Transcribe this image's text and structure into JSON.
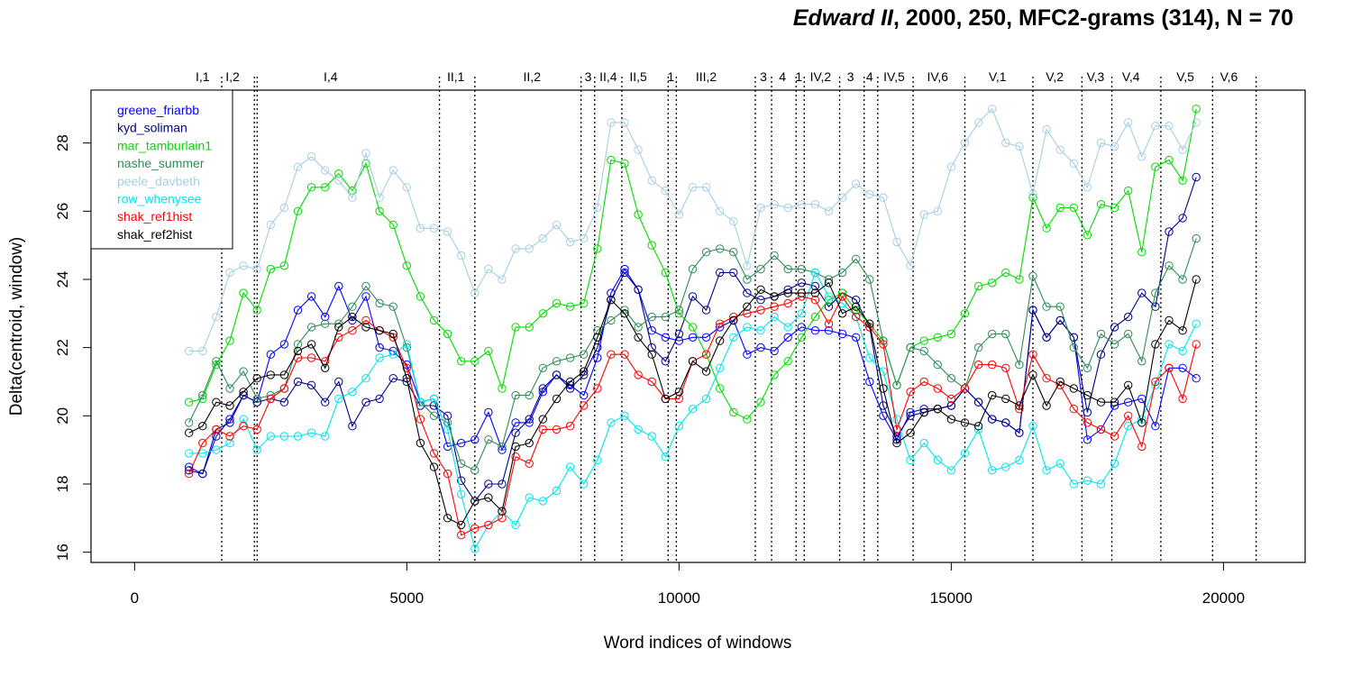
{
  "chart_data": {
    "type": "line",
    "title": {
      "italic_part": "Edward II",
      "rest": ", 2000, 250, MFC2-grams (314), N = 70"
    },
    "xlabel": "Word indices of windows",
    "ylabel": "Delta(centroid, window)",
    "xlim": [
      -800,
      21500
    ],
    "ylim": [
      15.7,
      29.55
    ],
    "xticks": [
      0,
      5000,
      10000,
      15000,
      20000
    ],
    "yticks": [
      16,
      18,
      20,
      22,
      24,
      26,
      28
    ],
    "grid": false,
    "legend_position": "top-left",
    "x": [
      1000,
      1250,
      1500,
      1750,
      2000,
      2250,
      2500,
      2750,
      3000,
      3250,
      3500,
      3750,
      4000,
      4250,
      4500,
      4750,
      5000,
      5250,
      5500,
      5750,
      6000,
      6250,
      6500,
      6750,
      7000,
      7250,
      7500,
      7750,
      8000,
      8250,
      8500,
      8750,
      9000,
      9250,
      9500,
      9750,
      10000,
      10250,
      10500,
      10750,
      11000,
      11250,
      11500,
      11750,
      12000,
      12250,
      12500,
      12750,
      13000,
      13250,
      13500,
      13750,
      14000,
      14250,
      14500,
      14750,
      15000,
      15250,
      15500,
      15750,
      16000,
      16250,
      16500,
      16750,
      17000,
      17250,
      17500,
      17750,
      18000,
      18250,
      18500,
      18750,
      19000,
      19250,
      19500
    ],
    "series": [
      {
        "name": "greene_friarbb",
        "color": "#0000ff",
        "values": [
          18.5,
          18.3,
          19.4,
          19.9,
          20.6,
          20.4,
          21.8,
          22.1,
          23.1,
          23.5,
          22.9,
          23.8,
          22.8,
          23.5,
          22.0,
          21.9,
          21.5,
          20.4,
          20.5,
          19.1,
          19.2,
          19.3,
          20.1,
          19.0,
          19.8,
          19.8,
          20.7,
          21.2,
          20.9,
          20.6,
          21.7,
          23.6,
          24.3,
          23.7,
          22.5,
          22.3,
          22.2,
          22.3,
          22.3,
          22.6,
          22.8,
          21.8,
          22.0,
          21.9,
          22.3,
          22.6,
          22.5,
          22.5,
          22.4,
          22.3,
          21.0,
          20.0,
          19.3,
          20.1,
          20.2,
          20.2,
          20.3,
          20.8,
          20.4,
          19.9,
          19.8,
          19.5,
          23.1,
          22.3,
          22.8,
          22.3,
          19.3,
          19.6,
          20.3,
          20.4,
          20.5,
          19.7,
          21.4,
          21.4,
          21.1
        ]
      },
      {
        "name": "kyd_soliman",
        "color": "#00008b",
        "values": [
          18.4,
          18.3,
          19.6,
          19.8,
          20.6,
          20.4,
          20.5,
          20.4,
          21.0,
          20.9,
          20.4,
          21.0,
          19.7,
          20.4,
          20.5,
          21.1,
          21.0,
          20.3,
          20.3,
          20.0,
          18.1,
          17.5,
          18.0,
          18.0,
          19.5,
          19.9,
          20.8,
          21.2,
          20.8,
          21.2,
          22.0,
          23.4,
          24.2,
          23.7,
          22.0,
          21.6,
          22.4,
          23.5,
          23.1,
          24.2,
          24.2,
          23.6,
          23.4,
          23.5,
          23.7,
          23.9,
          23.8,
          23.2,
          23.6,
          23.4,
          22.6,
          20.3,
          19.4,
          20.0,
          20.1,
          20.2,
          20.3,
          20.8,
          20.4,
          19.9,
          19.8,
          19.5,
          23.1,
          22.3,
          22.8,
          22.3,
          20.1,
          21.8,
          22.6,
          22.9,
          23.6,
          23.2,
          25.4,
          25.8,
          27.0
        ]
      },
      {
        "name": "mar_tamburlain1",
        "color": "#00dd00",
        "values": [
          20.4,
          20.5,
          21.5,
          22.2,
          23.6,
          23.1,
          24.3,
          24.4,
          26.0,
          26.7,
          26.7,
          27.1,
          26.6,
          27.4,
          26.0,
          25.6,
          24.4,
          23.5,
          22.8,
          22.4,
          21.6,
          21.6,
          21.9,
          20.8,
          22.6,
          22.6,
          23.0,
          23.3,
          23.2,
          23.3,
          24.9,
          27.5,
          27.4,
          25.9,
          25.0,
          24.2,
          23.0,
          22.6,
          21.8,
          20.8,
          20.1,
          19.9,
          20.4,
          21.2,
          21.6,
          22.3,
          22.9,
          23.4,
          23.6,
          23.1,
          22.7,
          22.2,
          20.9,
          22.0,
          22.2,
          22.3,
          22.4,
          23.0,
          23.8,
          23.9,
          24.2,
          24.0,
          26.4,
          25.5,
          26.1,
          26.1,
          25.3,
          26.2,
          26.1,
          26.6,
          24.8,
          27.3,
          27.5,
          26.9,
          29.0
        ]
      },
      {
        "name": "nashe_summer",
        "color": "#2e8b57",
        "values": [
          19.8,
          20.6,
          21.6,
          20.8,
          21.3,
          20.5,
          20.6,
          20.8,
          22.1,
          22.6,
          22.7,
          22.7,
          23.2,
          23.8,
          23.3,
          23.2,
          22.0,
          20.4,
          20.0,
          19.8,
          18.6,
          18.4,
          19.3,
          19.1,
          20.6,
          20.6,
          21.4,
          21.6,
          21.7,
          21.8,
          22.5,
          22.8,
          23.1,
          22.6,
          22.9,
          22.9,
          23.1,
          24.3,
          24.8,
          24.9,
          24.8,
          24.0,
          24.3,
          24.7,
          24.3,
          24.3,
          24.2,
          24.0,
          24.2,
          24.6,
          24.0,
          22.2,
          20.9,
          22.0,
          21.9,
          21.5,
          21.1,
          20.8,
          22.0,
          22.4,
          22.4,
          21.5,
          24.1,
          23.2,
          23.2,
          22.0,
          21.4,
          22.4,
          22.1,
          22.4,
          21.6,
          23.6,
          24.4,
          24.0,
          25.2
        ]
      },
      {
        "name": "peele_davbeth",
        "color": "#a6cee3",
        "values": [
          21.9,
          21.9,
          22.9,
          24.2,
          24.4,
          24.3,
          25.6,
          26.1,
          27.3,
          27.6,
          27.2,
          26.9,
          26.4,
          27.7,
          26.4,
          27.2,
          26.7,
          25.5,
          25.5,
          25.4,
          24.7,
          23.6,
          24.3,
          24.0,
          24.9,
          24.9,
          25.2,
          25.6,
          25.1,
          25.2,
          26.1,
          28.6,
          28.6,
          27.8,
          26.9,
          26.6,
          25.9,
          26.7,
          26.7,
          26.0,
          25.7,
          24.4,
          26.1,
          26.2,
          26.1,
          26.2,
          26.2,
          26.0,
          26.4,
          26.8,
          26.5,
          26.4,
          25.1,
          24.4,
          25.9,
          26.0,
          27.3,
          28.0,
          28.6,
          29.0,
          28.0,
          27.9,
          26.5,
          28.4,
          27.8,
          27.4,
          26.7,
          28.0,
          27.9,
          28.6,
          27.6,
          28.5,
          28.5,
          27.8,
          28.6
        ]
      },
      {
        "name": "row_whenysee",
        "color": "#00e5ee",
        "values": [
          18.9,
          18.9,
          19.0,
          19.2,
          19.9,
          19.0,
          19.4,
          19.4,
          19.4,
          19.5,
          19.4,
          20.5,
          20.7,
          21.1,
          21.7,
          21.8,
          22.1,
          20.4,
          20.5,
          19.6,
          17.7,
          16.1,
          16.8,
          17.2,
          16.8,
          17.6,
          17.5,
          17.8,
          18.5,
          18.0,
          18.7,
          19.8,
          20.0,
          19.6,
          19.4,
          18.8,
          19.7,
          20.2,
          20.5,
          21.4,
          22.3,
          22.6,
          22.5,
          22.9,
          22.6,
          23.0,
          24.2,
          23.5,
          23.3,
          22.9,
          21.7,
          21.3,
          19.9,
          18.7,
          19.2,
          18.7,
          18.4,
          18.9,
          19.6,
          18.4,
          18.5,
          18.7,
          19.7,
          18.4,
          18.6,
          18.0,
          18.1,
          18.0,
          18.6,
          19.7,
          19.9,
          20.9,
          22.1,
          21.9,
          22.7
        ]
      },
      {
        "name": "shak_ref1hist",
        "color": "#ff0000",
        "values": [
          18.3,
          19.2,
          19.6,
          19.4,
          19.7,
          19.6,
          20.5,
          20.8,
          21.7,
          21.7,
          21.6,
          22.3,
          22.5,
          22.8,
          22.5,
          22.3,
          21.4,
          19.9,
          18.9,
          18.3,
          16.5,
          16.7,
          16.8,
          17.0,
          18.8,
          18.6,
          19.6,
          19.6,
          19.7,
          20.3,
          20.8,
          21.8,
          21.8,
          21.2,
          21.0,
          20.5,
          20.5,
          21.6,
          21.8,
          22.7,
          22.9,
          23.0,
          23.1,
          23.2,
          23.3,
          23.5,
          23.4,
          22.7,
          23.5,
          22.9,
          22.6,
          22.1,
          19.6,
          20.7,
          21.0,
          20.8,
          20.5,
          20.8,
          21.5,
          21.5,
          21.4,
          20.2,
          21.8,
          21.1,
          20.9,
          20.2,
          19.8,
          19.6,
          19.4,
          20.0,
          19.1,
          21.0,
          21.4,
          20.5,
          22.1
        ]
      },
      {
        "name": "shak_ref2hist",
        "color": "#000000",
        "values": [
          19.5,
          19.7,
          20.4,
          20.3,
          20.7,
          21.1,
          21.2,
          21.2,
          21.9,
          22.1,
          21.4,
          22.6,
          22.9,
          22.6,
          22.5,
          22.4,
          21.1,
          19.2,
          18.5,
          17.0,
          16.8,
          17.5,
          17.6,
          17.2,
          19.1,
          19.2,
          19.9,
          20.5,
          21.0,
          21.3,
          22.3,
          23.4,
          23.0,
          22.3,
          21.8,
          20.5,
          20.7,
          21.6,
          21.3,
          22.2,
          22.8,
          23.2,
          23.7,
          23.5,
          23.6,
          23.6,
          23.6,
          23.9,
          23.0,
          23.2,
          22.7,
          20.8,
          19.2,
          19.5,
          20.1,
          20.2,
          19.9,
          19.8,
          19.7,
          20.6,
          20.5,
          20.3,
          21.2,
          20.3,
          21.0,
          20.8,
          20.6,
          20.4,
          20.4,
          20.9,
          19.8,
          22.1,
          22.8,
          22.5,
          24.0
        ]
      }
    ],
    "scene_boundaries": [
      1600,
      2200,
      2250,
      5600,
      6250,
      8200,
      8450,
      8950,
      9800,
      9950,
      11400,
      11700,
      12150,
      12300,
      12950,
      13400,
      13650,
      14300,
      15250,
      16500,
      17400,
      17950,
      18850,
      19800,
      20600
    ],
    "scene_labels": [
      {
        "label": "I,1",
        "x": 1250
      },
      {
        "label": "I,2",
        "x": 1800
      },
      {
        "label": "I,4",
        "x": 3600
      },
      {
        "label": "II,1",
        "x": 5900
      },
      {
        "label": "II,2",
        "x": 7300
      },
      {
        "label": "3",
        "x": 8330
      },
      {
        "label": "II,4",
        "x": 8700
      },
      {
        "label": "II,5",
        "x": 9250
      },
      {
        "label": "1",
        "x": 9850
      },
      {
        "label": "III,2",
        "x": 10500
      },
      {
        "label": "3",
        "x": 11550
      },
      {
        "label": "4",
        "x": 11900
      },
      {
        "label": "1",
        "x": 12200
      },
      {
        "label": "IV,2",
        "x": 12600
      },
      {
        "label": "3",
        "x": 13150
      },
      {
        "label": "4",
        "x": 13500
      },
      {
        "label": "IV,5",
        "x": 13950
      },
      {
        "label": "IV,6",
        "x": 14750
      },
      {
        "label": "V,1",
        "x": 15850
      },
      {
        "label": "V,2",
        "x": 16900
      },
      {
        "label": "V,3",
        "x": 17650
      },
      {
        "label": "V,4",
        "x": 18300
      },
      {
        "label": "V,5",
        "x": 19300
      },
      {
        "label": "V,6",
        "x": 20100
      }
    ]
  }
}
